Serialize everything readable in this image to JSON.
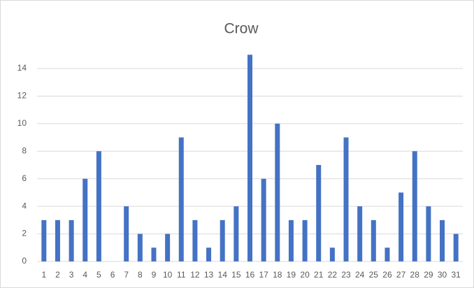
{
  "chart_data": {
    "type": "bar",
    "title": "Crow",
    "categories": [
      "1",
      "2",
      "3",
      "4",
      "5",
      "6",
      "7",
      "8",
      "9",
      "10",
      "11",
      "12",
      "13",
      "14",
      "15",
      "16",
      "17",
      "18",
      "19",
      "20",
      "21",
      "22",
      "23",
      "24",
      "25",
      "26",
      "27",
      "28",
      "29",
      "30",
      "31"
    ],
    "values": [
      3,
      3,
      3,
      6,
      8,
      0,
      4,
      2,
      1,
      2,
      9,
      3,
      1,
      3,
      4,
      15,
      6,
      10,
      3,
      3,
      7,
      1,
      9,
      4,
      3,
      1,
      5,
      8,
      4,
      3,
      2
    ],
    "color": "#4472c4",
    "ylim": [
      0,
      16
    ],
    "yticks": [
      0,
      2,
      4,
      6,
      8,
      10,
      12,
      14
    ],
    "grid": true
  }
}
